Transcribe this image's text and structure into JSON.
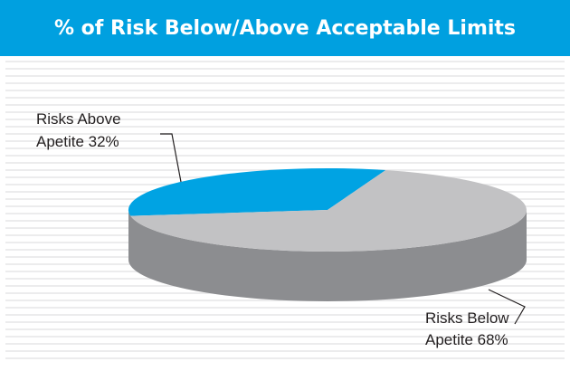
{
  "chart_data": {
    "type": "pie",
    "title": "% of Risk Below/Above Acceptable Limits",
    "slices": [
      {
        "line1": "Risks Above",
        "line2": "Apetite 32%",
        "value": 32,
        "color": "#00a3e3"
      },
      {
        "line1": "Risks Below",
        "line2": "Apetite 68%",
        "value": 68,
        "color": "#c2c2c4"
      }
    ],
    "side_color": "#8c8d90",
    "grid": true,
    "grid_color": "#e6e6e7"
  }
}
